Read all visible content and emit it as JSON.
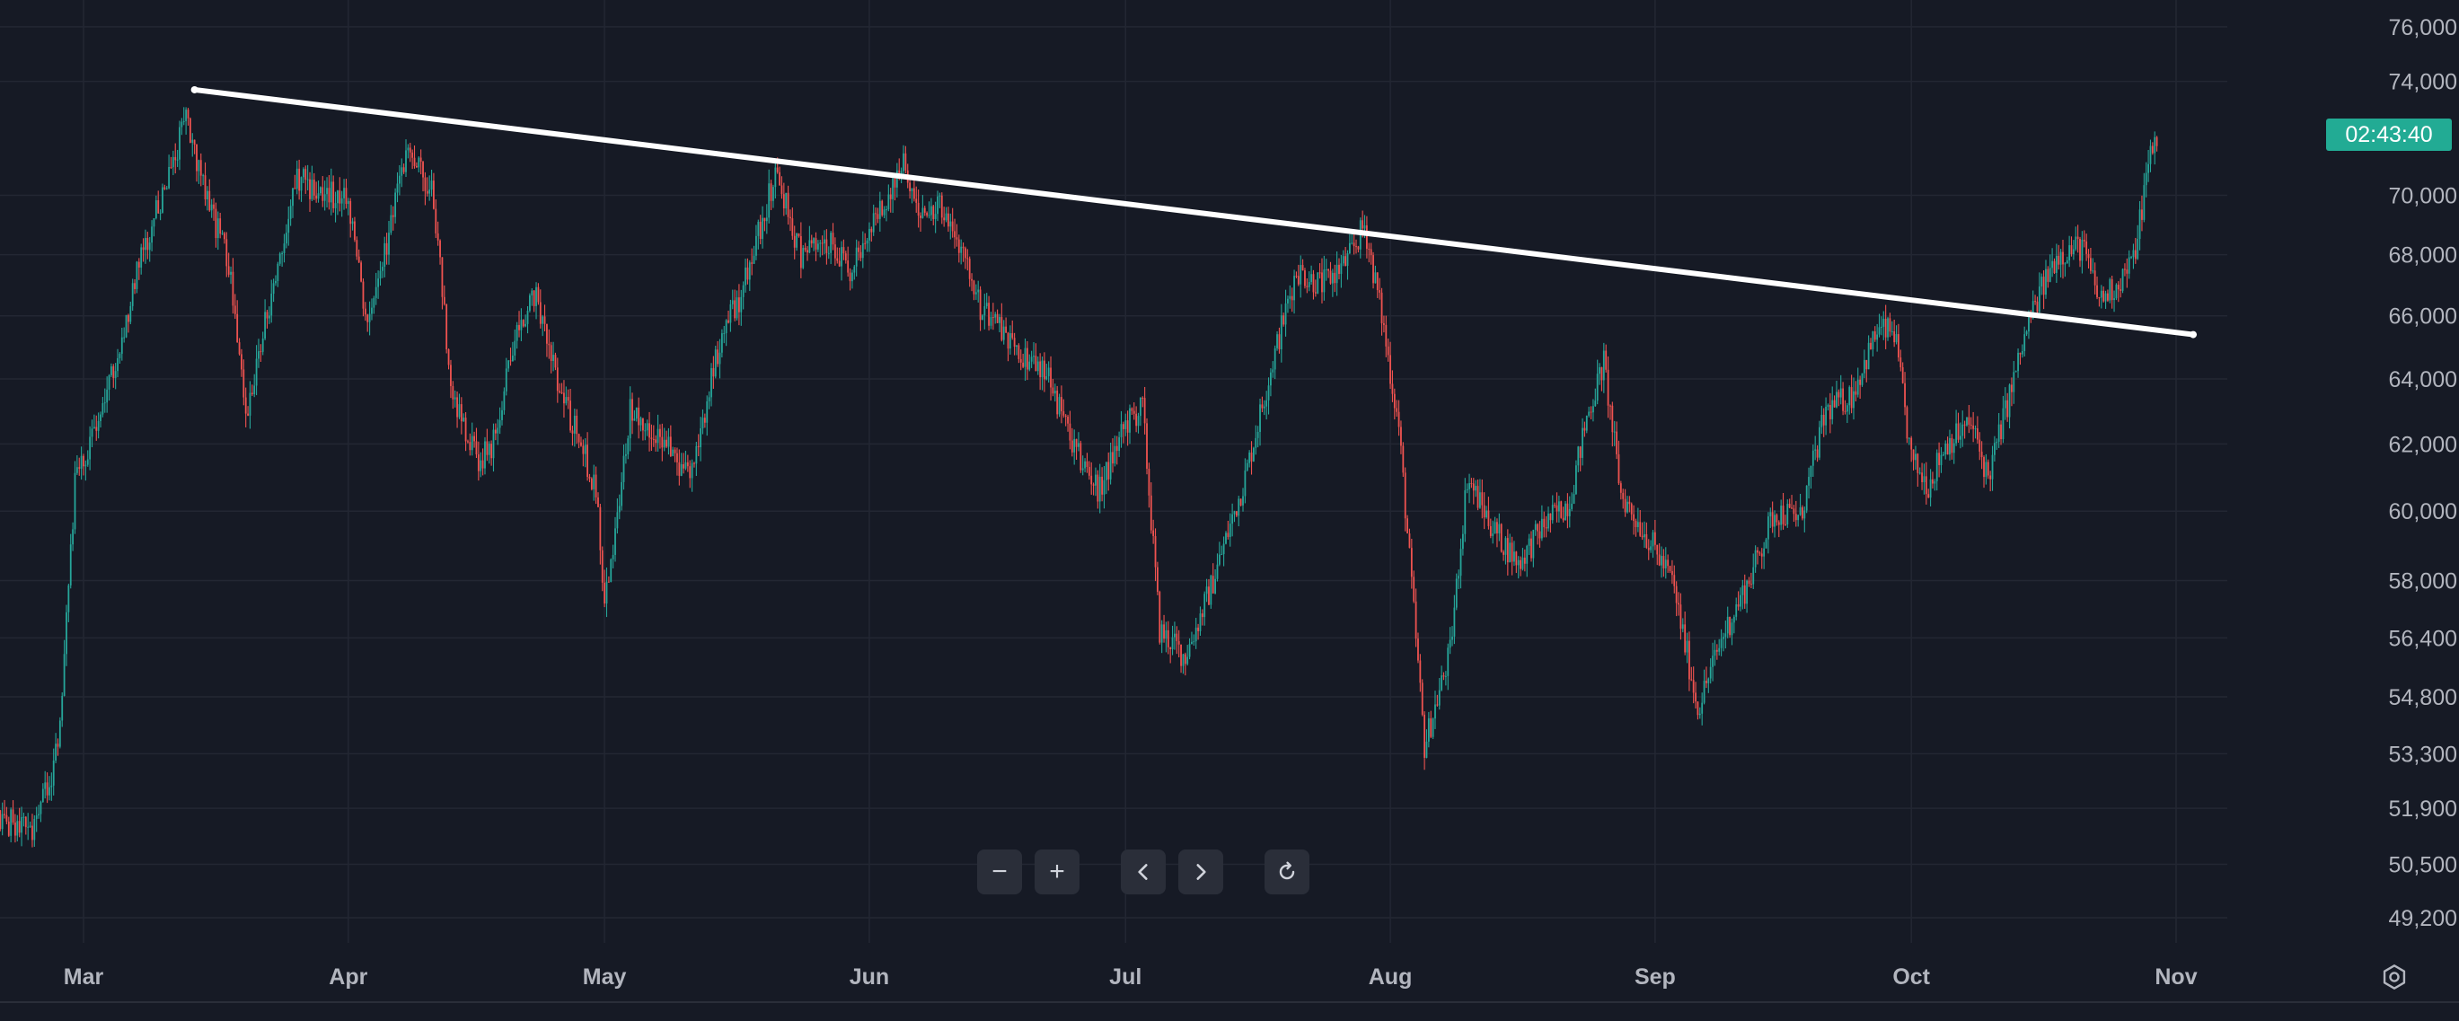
{
  "chart_data": {
    "type": "candlestick",
    "x_tick_labels": [
      "Mar",
      "Apr",
      "May",
      "Jun",
      "Jul",
      "Aug",
      "Sep",
      "Oct",
      "Nov"
    ],
    "y_tick_labels": [
      "76,000",
      "74,000",
      "70,000",
      "68,000",
      "66,000",
      "64,000",
      "62,000",
      "60,000",
      "58,000",
      "56,400",
      "54,800",
      "53,300",
      "51,900",
      "50,500",
      "49,200"
    ],
    "y_scale": "log",
    "ylim": [
      48600,
      77000
    ],
    "grid": true,
    "price_path": [
      [
        "Feb 20",
        51700
      ],
      [
        "Feb 24",
        51200
      ],
      [
        "Feb 27",
        53400
      ],
      [
        "Feb 29",
        60800
      ],
      [
        "Mar 2",
        62300
      ],
      [
        "Mar 5",
        64600
      ],
      [
        "Mar 7",
        67200
      ],
      [
        "Mar 9",
        68900
      ],
      [
        "Mar 13",
        72700
      ],
      [
        "Mar 15",
        70500
      ],
      [
        "Mar 18",
        67600
      ],
      [
        "Mar 20",
        63000
      ],
      [
        "Mar 22",
        65400
      ],
      [
        "Mar 26",
        70500
      ],
      [
        "Mar 29",
        70200
      ],
      [
        "Apr 1",
        69800
      ],
      [
        "Apr 3",
        65800
      ],
      [
        "Apr 5",
        67800
      ],
      [
        "Apr 8",
        71500
      ],
      [
        "Apr 11",
        70000
      ],
      [
        "Apr 13",
        63800
      ],
      [
        "Apr 16",
        61500
      ],
      [
        "Apr 18",
        62000
      ],
      [
        "Apr 20",
        64800
      ],
      [
        "Apr 23",
        66700
      ],
      [
        "Apr 26",
        63500
      ],
      [
        "Apr 30",
        60700
      ],
      [
        "May 1",
        57200
      ],
      [
        "May 4",
        63000
      ],
      [
        "May 8",
        62000
      ],
      [
        "May 11",
        61000
      ],
      [
        "May 15",
        65700
      ],
      [
        "May 17",
        66600
      ],
      [
        "May 21",
        70800
      ],
      [
        "May 24",
        68000
      ],
      [
        "May 27",
        68500
      ],
      [
        "May 30",
        67500
      ],
      [
        "Jun 3",
        70000
      ],
      [
        "Jun 5",
        71100
      ],
      [
        "Jun 7",
        69600
      ],
      [
        "Jun 10",
        69500
      ],
      [
        "Jun 12",
        68000
      ],
      [
        "Jun 14",
        66200
      ],
      [
        "Jun 18",
        65000
      ],
      [
        "Jun 22",
        64100
      ],
      [
        "Jun 25",
        61800
      ],
      [
        "Jun 28",
        60600
      ],
      [
        "Jul 1",
        62600
      ],
      [
        "Jul 3",
        63100
      ],
      [
        "Jul 5",
        56600
      ],
      [
        "Jul 8",
        55900
      ],
      [
        "Jul 11",
        57800
      ],
      [
        "Jul 15",
        61000
      ],
      [
        "Jul 18",
        64300
      ],
      [
        "Jul 21",
        67500
      ],
      [
        "Jul 24",
        67000
      ],
      [
        "Jul 27",
        67800
      ],
      [
        "Jul 29",
        69000
      ],
      [
        "Jul 31",
        66000
      ],
      [
        "Aug 2",
        62500
      ],
      [
        "Aug 5",
        53500
      ],
      [
        "Aug 8",
        56000
      ],
      [
        "Aug 10",
        61000
      ],
      [
        "Aug 13",
        59500
      ],
      [
        "Aug 16",
        58500
      ],
      [
        "Aug 19",
        59600
      ],
      [
        "Aug 22",
        60300
      ],
      [
        "Aug 24",
        62800
      ],
      [
        "Aug 26",
        64500
      ],
      [
        "Aug 28",
        60500
      ],
      [
        "Aug 31",
        59300
      ],
      [
        "Sep 3",
        58000
      ],
      [
        "Sep 6",
        54500
      ],
      [
        "Sep 9",
        56500
      ],
      [
        "Sep 12",
        58000
      ],
      [
        "Sep 15",
        60000
      ],
      [
        "Sep 18",
        59800
      ],
      [
        "Sep 21",
        63000
      ],
      [
        "Sep 24",
        63500
      ],
      [
        "Sep 27",
        65500
      ],
      [
        "Sep 29",
        65500
      ],
      [
        "Oct 1",
        61500
      ],
      [
        "Oct 3",
        60800
      ],
      [
        "Oct 5",
        62000
      ],
      [
        "Oct 8",
        62600
      ],
      [
        "Oct 10",
        61000
      ],
      [
        "Oct 12",
        63000
      ],
      [
        "Oct 15",
        66000
      ],
      [
        "Oct 18",
        68000
      ],
      [
        "Oct 21",
        68300
      ],
      [
        "Oct 23",
        66500
      ],
      [
        "Oct 25",
        67000
      ],
      [
        "Oct 27",
        67800
      ],
      [
        "Oct 29",
        71500
      ],
      [
        "Oct 30",
        72200
      ]
    ],
    "trendline": [
      [
        "Mar 14",
        73700
      ],
      [
        "Nov 3",
        65400
      ]
    ],
    "clock": "02:43:40",
    "colors": {
      "background": "#161a25",
      "grid": "#232733",
      "up": "#26a69a",
      "down": "#ef5350",
      "trendline": "#ffffff",
      "axis_text": "#b2b5be",
      "clock_badge": "#22ab94"
    }
  },
  "toolbar": {
    "zoom_out": "−",
    "zoom_in": "+"
  },
  "icons": {
    "zoom_out": "minus-icon",
    "zoom_in": "plus-icon",
    "scroll_left": "chevron-left-icon",
    "scroll_right": "chevron-right-icon",
    "reset": "reset-icon",
    "settings": "gear-icon"
  }
}
